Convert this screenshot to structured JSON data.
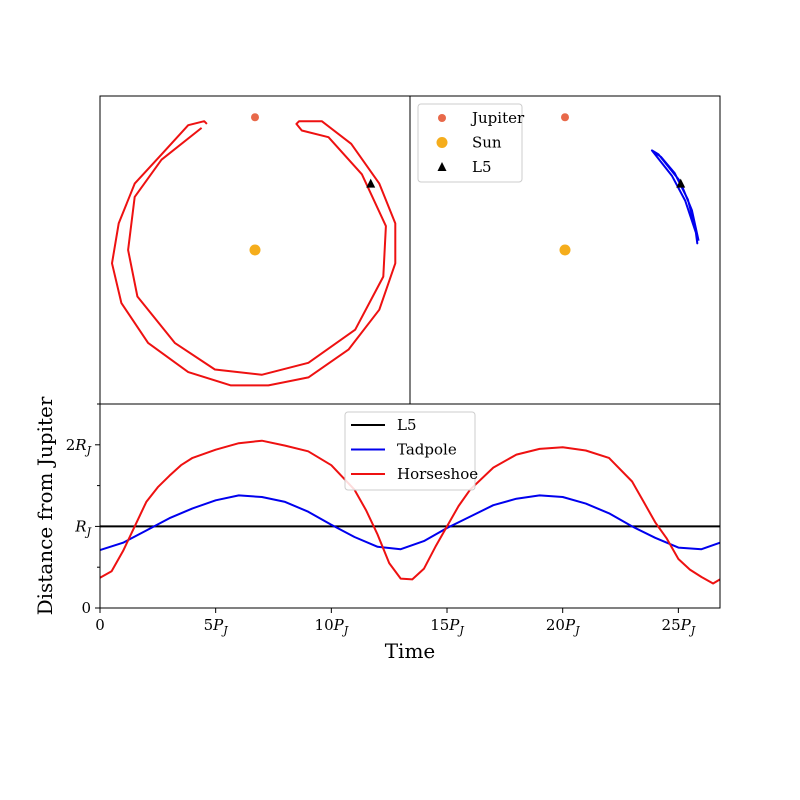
{
  "chart_data": [
    {
      "type": "scatter",
      "panel": "horseshoe-orbit",
      "subtitle": "",
      "points": [
        {
          "name": "Jupiter",
          "x": 0.0,
          "y": 1.0,
          "color": "#e8694a",
          "marker": "circle"
        },
        {
          "name": "Sun",
          "x": 0.0,
          "y": 0.0,
          "color": "#f5ad1c",
          "marker": "circle"
        },
        {
          "name": "L5",
          "x": 0.866,
          "y": 0.5,
          "color": "#000000",
          "marker": "triangle"
        }
      ],
      "series": [
        {
          "name": "Horseshoe",
          "color": "#ee1111",
          "description": "near-closed horseshoe orbit with gap around Jupiter",
          "path": [
            [
              -0.36,
              0.95
            ],
            [
              -0.38,
              0.97
            ],
            [
              -0.5,
              0.94
            ],
            [
              -0.7,
              0.72
            ],
            [
              -0.9,
              0.5
            ],
            [
              -1.02,
              0.2
            ],
            [
              -1.07,
              -0.1
            ],
            [
              -1.0,
              -0.4
            ],
            [
              -0.8,
              -0.7
            ],
            [
              -0.5,
              -0.92
            ],
            [
              -0.18,
              -1.02
            ],
            [
              0.1,
              -1.02
            ],
            [
              0.4,
              -0.96
            ],
            [
              0.7,
              -0.75
            ],
            [
              0.93,
              -0.45
            ],
            [
              1.05,
              -0.1
            ],
            [
              1.05,
              0.2
            ],
            [
              0.93,
              0.5
            ],
            [
              0.72,
              0.8
            ],
            [
              0.5,
              0.97
            ],
            [
              0.33,
              0.97
            ],
            [
              0.31,
              0.95
            ],
            [
              0.35,
              0.9
            ],
            [
              0.55,
              0.85
            ],
            [
              0.8,
              0.57
            ],
            [
              0.98,
              0.18
            ],
            [
              0.96,
              -0.2
            ],
            [
              0.75,
              -0.6
            ],
            [
              0.4,
              -0.85
            ],
            [
              0.05,
              -0.94
            ],
            [
              -0.3,
              -0.9
            ],
            [
              -0.6,
              -0.7
            ],
            [
              -0.88,
              -0.35
            ],
            [
              -0.95,
              0.0
            ],
            [
              -0.9,
              0.4
            ],
            [
              -0.7,
              0.68
            ],
            [
              -0.4,
              0.92
            ]
          ]
        }
      ],
      "xlim": [
        -1.16,
        1.16
      ],
      "ylim": [
        -1.16,
        1.16
      ]
    },
    {
      "type": "scatter",
      "panel": "tadpole-orbit",
      "subtitle": "",
      "legend": {
        "placement": "top-left",
        "entries": [
          "Jupiter",
          "Sun",
          "L5"
        ]
      },
      "points": [
        {
          "name": "Jupiter",
          "x": 0.0,
          "y": 1.0,
          "color": "#e8694a",
          "marker": "circle"
        },
        {
          "name": "Sun",
          "x": 0.0,
          "y": 0.0,
          "color": "#f5ad1c",
          "marker": "circle"
        },
        {
          "name": "L5",
          "x": 0.866,
          "y": 0.5,
          "color": "#000000",
          "marker": "triangle"
        }
      ],
      "series": [
        {
          "name": "Tadpole",
          "color": "#0000ee",
          "description": "tadpole orbit librating around L5",
          "path": [
            [
              0.65,
              0.75
            ],
            [
              0.72,
              0.7
            ],
            [
              0.82,
              0.58
            ],
            [
              0.92,
              0.38
            ],
            [
              0.98,
              0.15
            ],
            [
              0.99,
              0.05
            ],
            [
              0.98,
              0.13
            ],
            [
              0.9,
              0.37
            ],
            [
              0.8,
              0.56
            ],
            [
              0.69,
              0.7
            ],
            [
              0.65,
              0.75
            ],
            [
              0.7,
              0.72
            ],
            [
              0.86,
              0.52
            ],
            [
              0.95,
              0.3
            ],
            [
              1.0,
              0.07
            ]
          ]
        }
      ],
      "xlim": [
        -1.16,
        1.16
      ],
      "ylim": [
        -1.16,
        1.16
      ]
    },
    {
      "type": "line",
      "panel": "distance-vs-time",
      "xlabel": "Time",
      "ylabel": "Distance from Jupiter",
      "xlim": [
        0,
        26.8
      ],
      "ylim": [
        0,
        2.5
      ],
      "xticks": [
        0,
        5,
        10,
        15,
        20,
        25
      ],
      "xtick_labels": [
        "0",
        "5P_J",
        "10P_J",
        "15P_J",
        "20P_J",
        "25P_J"
      ],
      "yticks": [
        0,
        1,
        2
      ],
      "ytick_labels": [
        "0",
        "R_J",
        "2R_J"
      ],
      "minor_yticks": [
        0.5,
        1.5,
        2.5
      ],
      "legend": {
        "placement": "top-center",
        "entries": [
          "L5",
          "Tadpole",
          "Horseshoe"
        ]
      },
      "series": [
        {
          "name": "L5",
          "color": "#000000",
          "x": [
            0,
            26.8
          ],
          "y": [
            1.0,
            1.0
          ]
        },
        {
          "name": "Tadpole",
          "color": "#0000ee",
          "x": [
            0,
            1,
            2,
            3,
            4,
            5,
            6,
            7,
            8,
            9,
            10,
            11,
            12,
            13,
            14,
            15,
            16,
            17,
            18,
            19,
            20,
            21,
            22,
            23,
            24,
            25,
            26,
            26.8
          ],
          "y": [
            0.71,
            0.8,
            0.95,
            1.1,
            1.22,
            1.32,
            1.38,
            1.36,
            1.3,
            1.18,
            1.02,
            0.87,
            0.75,
            0.72,
            0.82,
            0.98,
            1.12,
            1.26,
            1.34,
            1.38,
            1.36,
            1.28,
            1.16,
            1.0,
            0.86,
            0.74,
            0.72,
            0.8
          ]
        },
        {
          "name": "Horseshoe",
          "color": "#ee1111",
          "x": [
            0,
            0.5,
            1,
            1.5,
            2,
            2.5,
            3,
            3.5,
            4,
            5,
            6,
            7,
            8,
            9,
            10,
            11,
            11.5,
            12,
            12.5,
            13,
            13.5,
            14,
            14.5,
            15,
            15.5,
            16,
            17,
            18,
            19,
            20,
            21,
            22,
            23,
            23.5,
            24,
            24.5,
            25,
            25.5,
            26,
            26.5,
            26.8
          ],
          "y": [
            0.37,
            0.45,
            0.7,
            1.0,
            1.3,
            1.48,
            1.62,
            1.75,
            1.84,
            1.94,
            2.02,
            2.05,
            1.99,
            1.92,
            1.75,
            1.45,
            1.2,
            0.9,
            0.55,
            0.36,
            0.35,
            0.48,
            0.75,
            1.0,
            1.25,
            1.45,
            1.72,
            1.88,
            1.95,
            1.97,
            1.93,
            1.84,
            1.55,
            1.3,
            1.05,
            0.85,
            0.6,
            0.47,
            0.38,
            0.3,
            0.35
          ]
        }
      ]
    }
  ]
}
